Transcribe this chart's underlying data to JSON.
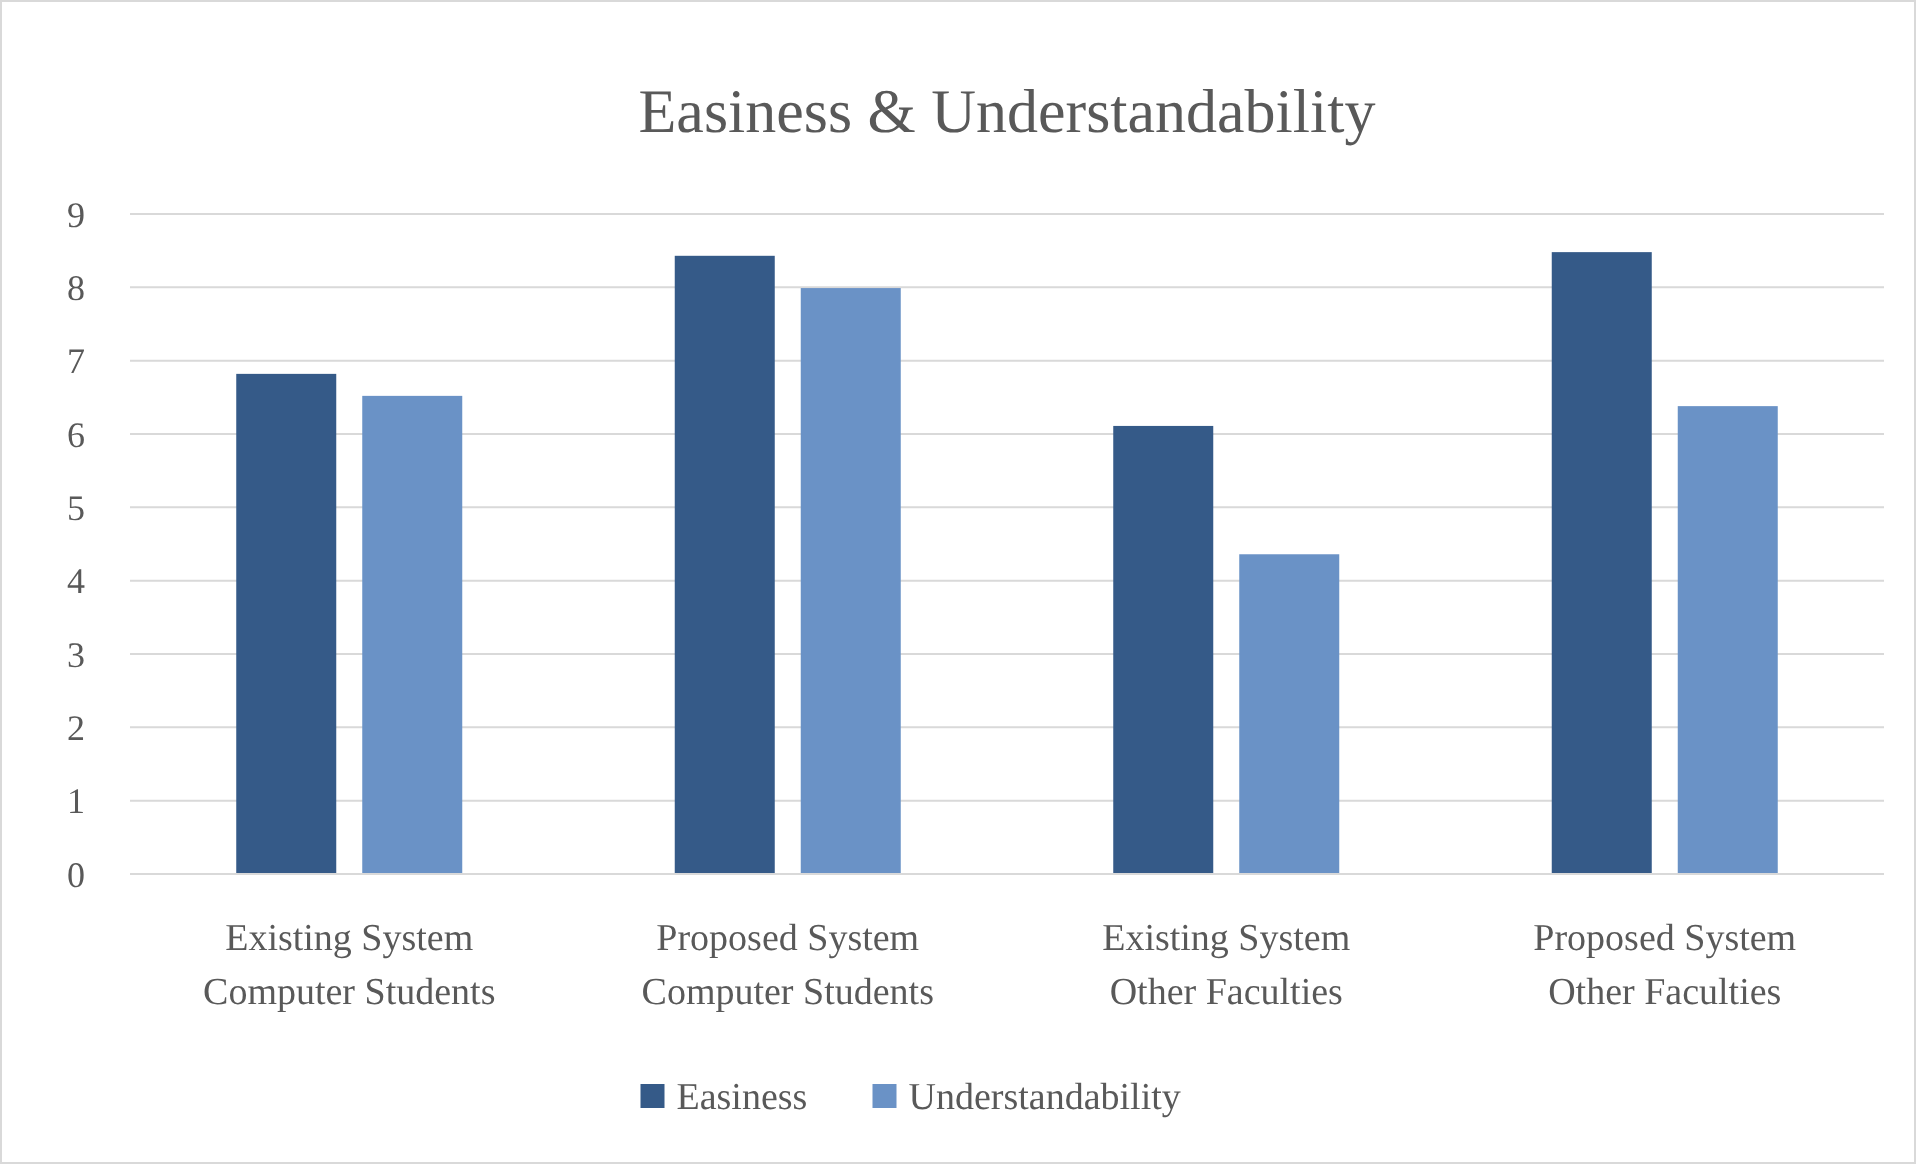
{
  "chart_data": {
    "type": "bar",
    "title": "Easiness & Understandability",
    "categories": [
      "Existing System Computer Students",
      "Proposed System Computer Students",
      "Existing System Other Faculties",
      "Proposed System Other Faculties"
    ],
    "series": [
      {
        "name": "Easiness",
        "color": "#355a88",
        "values": [
          6.82,
          8.43,
          6.11,
          8.48
        ]
      },
      {
        "name": "Understandability",
        "color": "#6a92c6",
        "values": [
          6.52,
          7.99,
          4.36,
          6.38
        ]
      }
    ],
    "ylim": [
      0,
      9
    ],
    "yticks": [
      0,
      1,
      2,
      3,
      4,
      5,
      6,
      7,
      8,
      9
    ],
    "grid": "y",
    "legend": "bottom"
  }
}
